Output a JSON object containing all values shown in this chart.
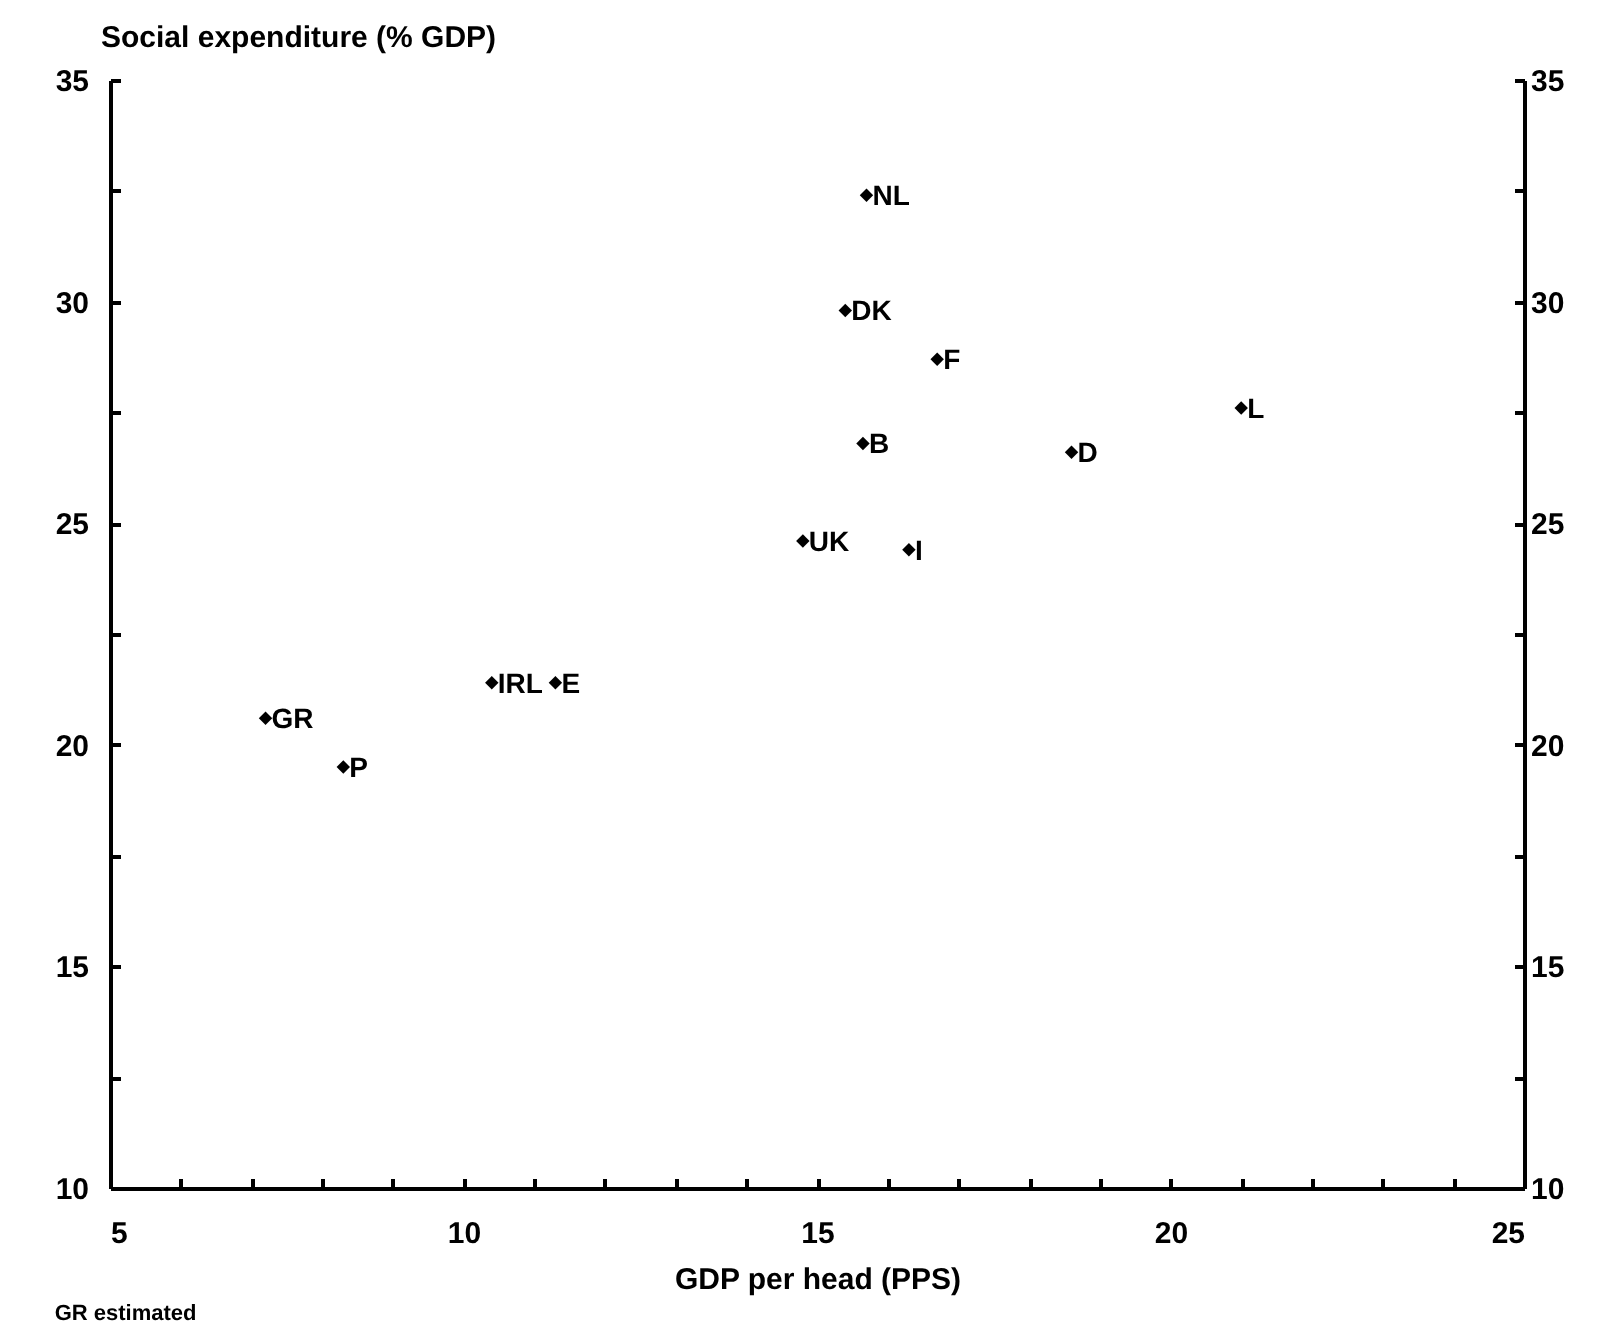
{
  "chart_data": {
    "type": "scatter",
    "marker": "diamond",
    "color": "#000000",
    "xlabel": "GDP per head (PPS)",
    "ylabel": "Social expenditure (% GDP)",
    "x": [
      15.7,
      15.4,
      16.7,
      15.65,
      18.6,
      21.0,
      14.8,
      16.3,
      10.4,
      11.3,
      7.2,
      8.3
    ],
    "values": [
      32.4,
      29.8,
      28.7,
      26.8,
      26.6,
      27.6,
      24.6,
      24.4,
      21.4,
      21.4,
      20.6,
      19.5
    ],
    "xlim": [
      5,
      25
    ],
    "xticks": [
      5,
      {
        "value": 6,
        "label": null
      },
      {
        "value": 7,
        "label": null
      },
      {
        "value": 8,
        "label": null
      },
      {
        "value": 9,
        "label": null
      },
      10,
      {
        "value": 11,
        "label": null
      },
      {
        "value": 12,
        "label": null
      },
      {
        "value": 13,
        "label": null
      },
      {
        "value": 14,
        "label": null
      },
      15,
      {
        "value": 16,
        "label": null
      },
      {
        "value": 17,
        "label": null
      },
      {
        "value": 18,
        "label": null
      },
      {
        "value": 19,
        "label": null
      },
      20,
      {
        "value": 21,
        "label": null
      },
      {
        "value": 22,
        "label": null
      },
      {
        "value": 23,
        "label": null
      },
      {
        "value": 24,
        "label": null
      },
      25
    ],
    "ylim": [
      10,
      35
    ],
    "yticks": [
      10,
      {
        "value": 12.5,
        "label": null
      },
      15,
      {
        "value": 17.5,
        "label": null
      },
      20,
      {
        "value": 22.5,
        "label": null
      },
      25,
      {
        "value": 27.5,
        "label": null
      },
      30,
      {
        "value": 32.5,
        "label": null
      },
      35
    ],
    "y2lim": [
      10,
      35
    ],
    "y2ticks": [
      10,
      {
        "value": 12.5,
        "label": null
      },
      15,
      {
        "value": 17.5,
        "label": null
      },
      20,
      {
        "value": 22.5,
        "label": null
      },
      25,
      {
        "value": 27.5,
        "label": null
      },
      30,
      {
        "value": 32.5,
        "label": null
      },
      35
    ],
    "annotations": [
      {
        "text": "NL",
        "x": 15.7,
        "y": 32.4
      },
      {
        "text": "DK",
        "x": 15.4,
        "y": 29.8
      },
      {
        "text": "F",
        "x": 16.7,
        "y": 28.7
      },
      {
        "text": "B",
        "x": 15.65,
        "y": 26.8
      },
      {
        "text": "D",
        "x": 18.6,
        "y": 26.6
      },
      {
        "text": "L",
        "x": 21.0,
        "y": 27.6
      },
      {
        "text": "UK",
        "x": 14.8,
        "y": 24.6
      },
      {
        "text": "I",
        "x": 16.3,
        "y": 24.4
      },
      {
        "text": "IRL",
        "x": 10.4,
        "y": 21.4
      },
      {
        "text": "E",
        "x": 11.3,
        "y": 21.4
      },
      {
        "text": "GR",
        "x": 7.2,
        "y": 20.6
      },
      {
        "text": "P",
        "x": 8.3,
        "y": 19.5
      },
      "GR estimated"
    ]
  }
}
